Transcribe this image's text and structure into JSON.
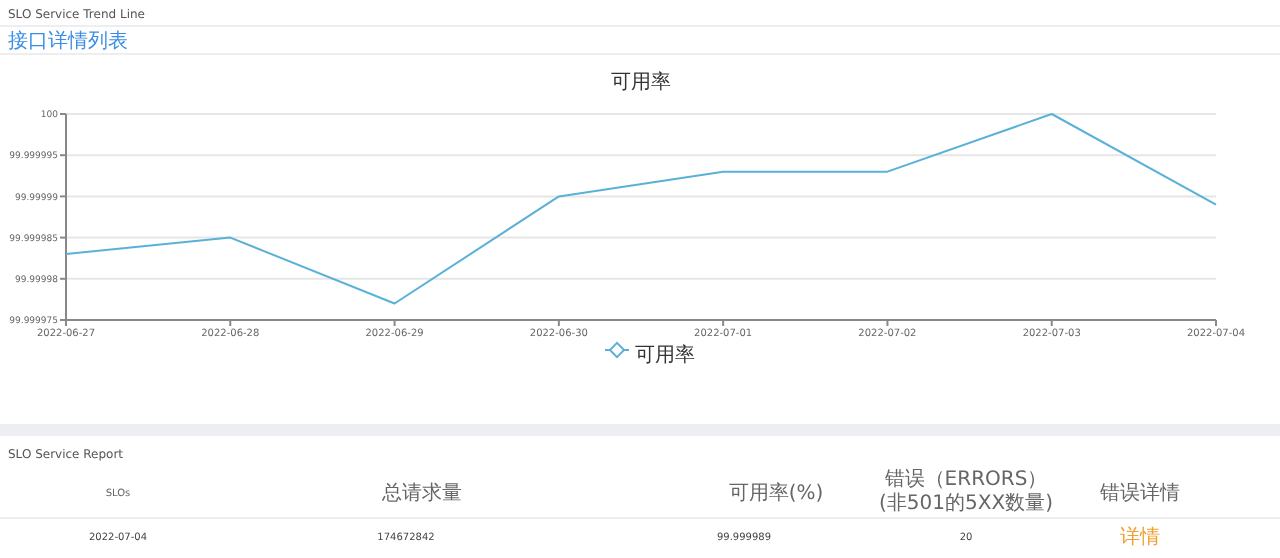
{
  "chart_data": {
    "type": "line",
    "title": "可用率",
    "categories": [
      "2022-06-27",
      "2022-06-28",
      "2022-06-29",
      "2022-06-30",
      "2022-07-01",
      "2022-07-02",
      "2022-07-03",
      "2022-07-04"
    ],
    "series": [
      {
        "name": "可用率",
        "color": "#5ab1d8",
        "values": [
          99.999983,
          99.999985,
          99.999977,
          99.99999,
          99.999993,
          99.999993,
          100,
          99.999989
        ]
      }
    ],
    "ylim": [
      99.999975,
      100
    ],
    "yticks": [
      99.999975,
      99.99998,
      99.999985,
      99.99999,
      99.999995,
      100
    ],
    "grid": "y",
    "legend": "bottom",
    "marker": "none",
    "annotations": [
      "SLO Service Trend Line",
      "接口详情列表",
      "SLO Service Report",
      "SLOs",
      "总请求量",
      "可用率(%)",
      "错误（ERRORS）",
      "(非501的5XX数量)",
      "错误详情",
      "2022-07-04",
      "174672842",
      "99.999989",
      "20",
      "详情"
    ]
  }
}
